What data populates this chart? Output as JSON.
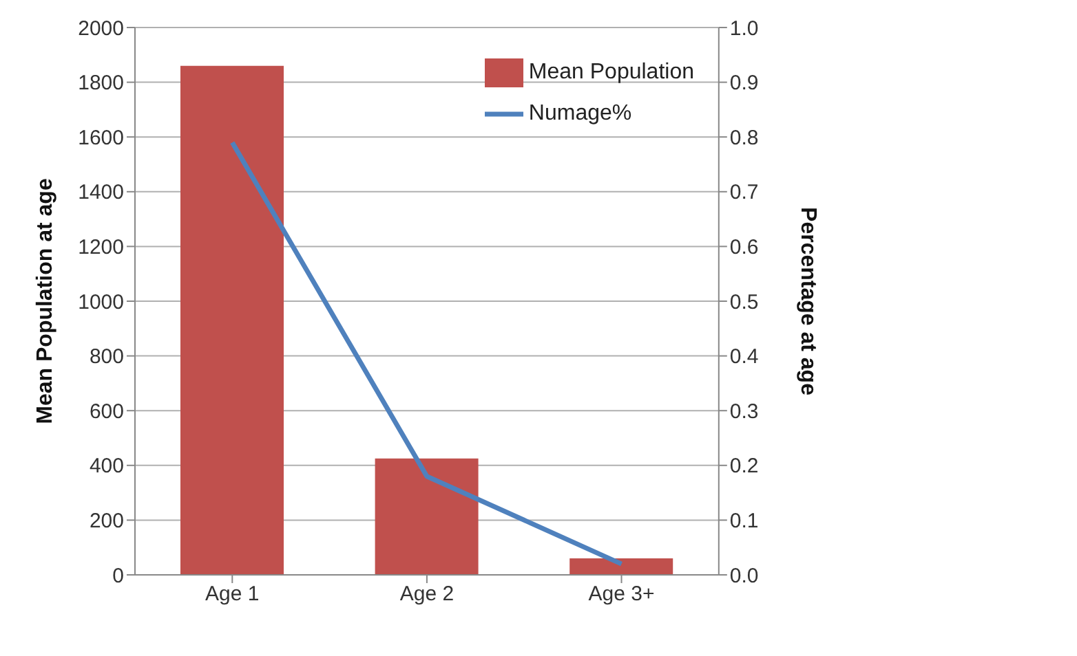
{
  "chart_data": {
    "type": "bar",
    "categories": [
      "Age 1",
      "Age 2",
      "Age 3+"
    ],
    "series": [
      {
        "name": "Mean Population",
        "color": "#c0504d",
        "values": [
          1860,
          425,
          60
        ]
      },
      {
        "name": "Numage%",
        "type": "line",
        "axis": "y2",
        "color": "#4f81bd",
        "values": [
          0.79,
          0.18,
          0.02
        ]
      }
    ],
    "ylabel": "Mean Population at age",
    "y2label": "Percentage at age",
    "ylim": [
      0,
      2000
    ],
    "yticks": [
      0,
      200,
      400,
      600,
      800,
      1000,
      1200,
      1400,
      1600,
      1800,
      2000
    ],
    "y2lim": [
      0,
      1
    ],
    "y2ticks": [
      {
        "value": 0,
        "label": "0.0"
      },
      {
        "value": 0.1,
        "label": "0.1"
      },
      {
        "value": 0.2,
        "label": "0.2"
      },
      {
        "value": 0.3,
        "label": "0.3"
      },
      {
        "value": 0.4,
        "label": "0.4"
      },
      {
        "value": 0.5,
        "label": "0.5"
      },
      {
        "value": 0.6,
        "label": "0.6"
      },
      {
        "value": 0.7,
        "label": "0.7"
      },
      {
        "value": 0.8,
        "label": "0.8"
      },
      {
        "value": 0.9,
        "label": "0.9"
      },
      {
        "value": 1,
        "label": "1.0"
      }
    ],
    "grid": "y",
    "legend": "top right",
    "marker": "none",
    "line_style": "solid"
  }
}
